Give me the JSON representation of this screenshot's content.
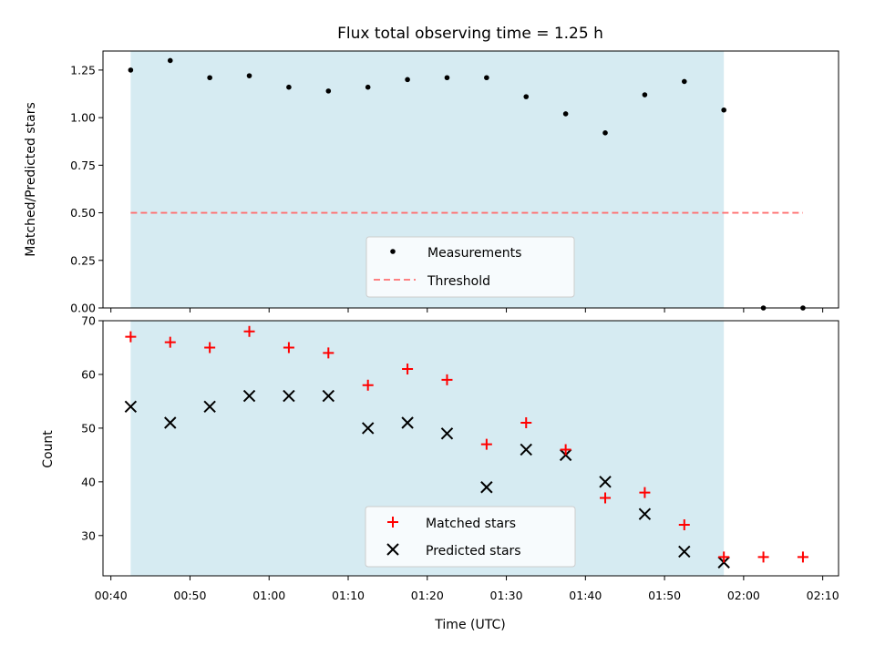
{
  "chart_data": [
    {
      "type": "scatter",
      "title": "Flux total observing time = 1.25 h",
      "xlabel": "",
      "ylabel": "Matched/Predicted stars",
      "xlim_minutes": [
        39,
        132
      ],
      "ylim": [
        0,
        1.35
      ],
      "yticks": [
        0,
        0.25,
        0.5,
        0.75,
        1.0,
        1.25
      ],
      "ytick_labels": [
        "0.00",
        "0.25",
        "0.50",
        "0.75",
        "1.00",
        "1.25"
      ],
      "shaded_span_minutes": [
        42.5,
        117.5
      ],
      "shaded_color": "#add8e6",
      "series": [
        {
          "name": "Measurements",
          "marker": "dot",
          "color": "#000000",
          "x_minutes": [
            42.5,
            47.5,
            52.5,
            57.5,
            62.5,
            67.5,
            72.5,
            77.5,
            82.5,
            87.5,
            92.5,
            97.5,
            102.5,
            107.5,
            112.5,
            117.5,
            122.5,
            127.5
          ],
          "values": [
            1.25,
            1.3,
            1.21,
            1.22,
            1.16,
            1.14,
            1.16,
            1.2,
            1.21,
            1.21,
            1.11,
            1.02,
            0.92,
            1.12,
            1.19,
            1.04,
            0.0,
            0.0
          ]
        },
        {
          "name": "Threshold",
          "marker": "dashed-line",
          "color": "#ff7070",
          "x_minutes": [
            42.5,
            127.5
          ],
          "values": [
            0.5,
            0.5
          ]
        }
      ],
      "legend": {
        "placement": "lower-center",
        "entries": [
          "Measurements",
          "Threshold"
        ]
      }
    },
    {
      "type": "scatter",
      "title": "",
      "xlabel": "Time (UTC)",
      "ylabel": "Count",
      "xlim_minutes": [
        39,
        132
      ],
      "ylim": [
        22.5,
        70
      ],
      "yticks": [
        30,
        40,
        50,
        60,
        70
      ],
      "ytick_labels": [
        "30",
        "40",
        "50",
        "60",
        "70"
      ],
      "xticks_minutes": [
        40,
        50,
        60,
        70,
        80,
        90,
        100,
        110,
        120,
        130
      ],
      "xtick_labels": [
        "00:40",
        "00:50",
        "01:00",
        "01:10",
        "01:20",
        "01:30",
        "01:40",
        "01:50",
        "02:00",
        "02:10"
      ],
      "shaded_span_minutes": [
        42.5,
        117.5
      ],
      "shaded_color": "#add8e6",
      "series": [
        {
          "name": "Matched stars",
          "marker": "plus",
          "color": "#ff0000",
          "x_minutes": [
            42.5,
            47.5,
            52.5,
            57.5,
            62.5,
            67.5,
            72.5,
            77.5,
            82.5,
            87.5,
            92.5,
            97.5,
            102.5,
            107.5,
            112.5,
            117.5,
            122.5,
            127.5
          ],
          "values": [
            67,
            66,
            65,
            68,
            65,
            64,
            58,
            61,
            59,
            47,
            51,
            46,
            37,
            38,
            32,
            26,
            26,
            26
          ]
        },
        {
          "name": "Predicted stars",
          "marker": "x",
          "color": "#000000",
          "x_minutes": [
            42.5,
            47.5,
            52.5,
            57.5,
            62.5,
            67.5,
            72.5,
            77.5,
            82.5,
            87.5,
            92.5,
            97.5,
            102.5,
            107.5,
            112.5,
            117.5
          ],
          "values": [
            54,
            51,
            54,
            56,
            56,
            56,
            50,
            51,
            49,
            39,
            46,
            45,
            40,
            34,
            27,
            25
          ]
        }
      ],
      "legend": {
        "placement": "lower-center",
        "entries": [
          "Matched stars",
          "Predicted stars"
        ]
      }
    }
  ]
}
